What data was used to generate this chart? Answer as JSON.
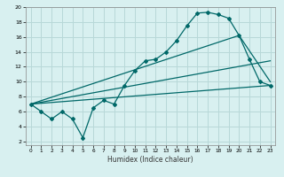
{
  "xlabel": "Humidex (Indice chaleur)",
  "bg_color": "#d8f0f0",
  "grid_color": "#b8d8d8",
  "line_color": "#006868",
  "xlim": [
    -0.5,
    23.5
  ],
  "ylim": [
    1.5,
    20.0
  ],
  "xticks": [
    0,
    1,
    2,
    3,
    4,
    5,
    6,
    7,
    8,
    9,
    10,
    11,
    12,
    13,
    14,
    15,
    16,
    17,
    18,
    19,
    20,
    21,
    22,
    23
  ],
  "yticks": [
    2,
    4,
    6,
    8,
    10,
    12,
    14,
    16,
    18,
    20
  ],
  "line1_x": [
    0,
    1,
    2,
    3,
    4,
    5,
    6,
    7,
    8,
    9,
    10,
    11,
    12,
    13,
    14,
    15,
    16,
    17,
    18,
    19,
    20,
    21,
    22,
    23
  ],
  "line1_y": [
    7.0,
    6.0,
    5.0,
    6.0,
    5.0,
    2.5,
    6.5,
    7.5,
    7.0,
    9.5,
    11.5,
    12.8,
    13.0,
    14.0,
    15.5,
    17.5,
    19.2,
    19.3,
    19.0,
    18.5,
    16.2,
    13.0,
    10.0,
    9.5
  ],
  "line2_x": [
    0,
    23
  ],
  "line2_y": [
    7.0,
    9.5
  ],
  "line3_x": [
    0,
    23
  ],
  "line3_y": [
    7.0,
    12.8
  ],
  "line4_x": [
    0,
    20,
    23
  ],
  "line4_y": [
    7.0,
    16.2,
    10.0
  ]
}
